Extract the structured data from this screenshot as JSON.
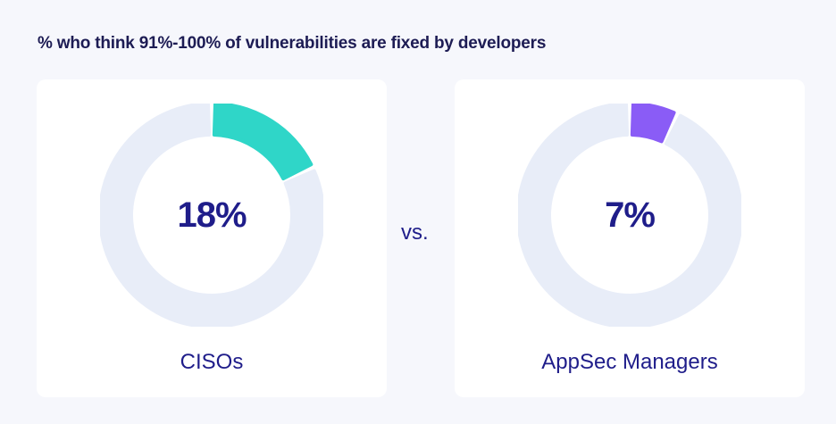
{
  "chart_data": {
    "type": "pie",
    "title": "% who think 91%-100% of vulnerabilities are fixed by developers",
    "separator_text": "vs.",
    "track_color": "#e8edf8",
    "charts": [
      {
        "category": "CISOs",
        "value": 18,
        "display": "18%",
        "color": "#2fd6c8"
      },
      {
        "category": "AppSec Managers",
        "value": 7,
        "display": "7%",
        "color": "#8a5cf6"
      }
    ]
  }
}
